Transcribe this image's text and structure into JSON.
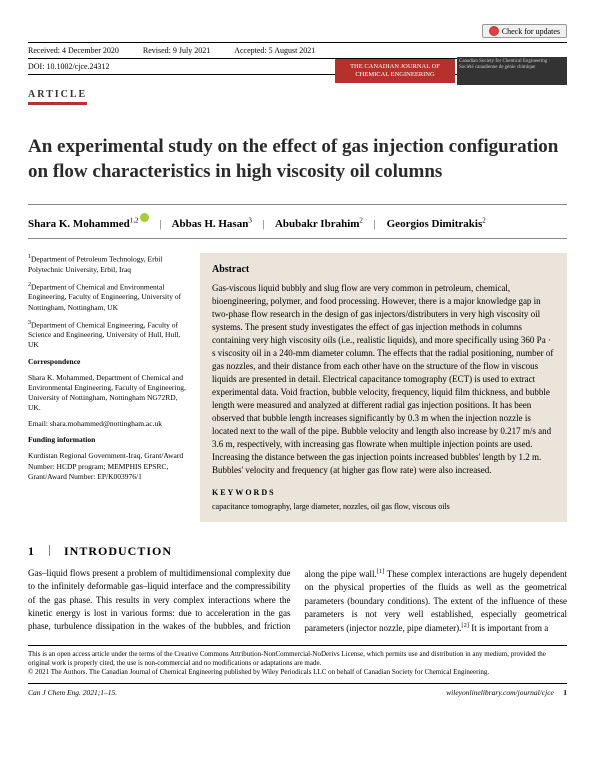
{
  "checkUpdates": "Check for updates",
  "meta": {
    "received": "Received: 4 December 2020",
    "revised": "Revised: 9 July 2021",
    "accepted": "Accepted: 5 August 2021",
    "doi": "DOI: 10.1002/cjce.24312"
  },
  "articleTag": "ARTICLE",
  "journalBanner": {
    "redLine1": "THE CANADIAN JOURNAL OF",
    "redLine2": "CHEMICAL ENGINEERING",
    "logoText": "Canadian Society for Chemical Engineering · Société canadienne de génie chimique"
  },
  "title": "An experimental study on the effect of gas injection configuration on flow characteristics in high viscosity oil columns",
  "authors": {
    "a1": {
      "name": "Shara K. Mohammed",
      "aff": "1,2"
    },
    "a2": {
      "name": "Abbas H. Hasan",
      "aff": "3"
    },
    "a3": {
      "name": "Abubakr Ibrahim",
      "aff": "2"
    },
    "a4": {
      "name": "Georgios Dimitrakis",
      "aff": "2"
    }
  },
  "affiliations": {
    "aff1": "Department of Petroleum Technology, Erbil Polytechnic University, Erbil, Iraq",
    "aff2": "Department of Chemical and Environmental Engineering, Faculty of Engineering, University of Nottingham, Nottingham, UK",
    "aff3": "Department of Chemical Engineering, Faculty of Science and Engineering, University of Hull, Hull, UK"
  },
  "correspondence": {
    "heading": "Correspondence",
    "text": "Shara K. Mohammed, Department of Chemical and Environmental Engineering, Faculty of Engineering, University of Nottingham, Nottingham NG72RD, UK.",
    "emailLabel": "Email: ",
    "email": "shara.mohammed@nottingham.ac.uk"
  },
  "funding": {
    "heading": "Funding information",
    "text": "Kurdistan Regional Government-Iraq, Grant/Award Number: HCDP program; MEMPHIS EPSRC, Grant/Award Number: EP/K003976/1"
  },
  "abstract": {
    "title": "Abstract",
    "body": "Gas-viscous liquid bubbly and slug flow are very common in petroleum, chemical, bioengineering, polymer, and food processing. However, there is a major knowledge gap in two-phase flow research in the design of gas injectors/distributers in very high viscosity oil systems. The present study investigates the effect of gas injection methods in columns containing very high viscosity oils (i.e., realistic liquids), and more specifically using 360 Pa · s viscosity oil in a 240-mm diameter column. The effects that the radial positioning, number of gas nozzles, and their distance from each other have on the structure of the flow in viscous liquids are presented in detail. Electrical capacitance tomography (ECT) is used to extract experimental data. Void fraction, bubble velocity, frequency, liquid film thickness, and bubble length were measured and analyzed at different radial gas injection positions. It has been observed that bubble length increases significantly by 0.3 m when the injection nozzle is located next to the wall of the pipe. Bubble velocity and length also increase by 0.217 m/s and 3.6 m, respectively, with increasing gas flowrate when multiple injection points are used. Increasing the distance between the gas injection points increased bubbles' length by 1.2 m. Bubbles' velocity and frequency (at higher gas flow rate) were also increased.",
    "kwTitle": "KEYWORDS",
    "keywords": "capacitance tomography, large diameter, nozzles, oil gas flow, viscous oils"
  },
  "section1": {
    "num": "1",
    "title": "INTRODUCTION",
    "para1": "Gas–liquid flows present a problem of multidimensional complexity due to the infinitely deformable gas–liquid interface and the compressibility of the gas phase. This results in very complex interactions where the kinetic energy is lost in various forms: due to acceleration in the gas phase,",
    "para2a": "turbulence dissipation in the wakes of the bubbles, and friction along the pipe wall.",
    "para2b": " These complex interactions are hugely dependent on the physical properties of the fluids as well as the geometrical parameters (boundary conditions). The extent of the influence of these parameters is not very well established, especially geometrical parameters (injector nozzle, pipe diameter).",
    "para2c": " It is important from a",
    "ref1": "[1]",
    "ref2": "[2]"
  },
  "license": {
    "line1": "This is an open access article under the terms of the Creative Commons Attribution-NonCommercial-NoDerivs License, which permits use and distribution in any medium, provided the original work is properly cited, the use is non-commercial and no modifications or adaptations are made.",
    "line2": "© 2021 The Authors. The Canadian Journal of Chemical Engineering published by Wiley Periodicals LLC on behalf of Canadian Society for Chemical Engineering."
  },
  "footer": {
    "left": "Can J Chem Eng. 2021;1–15.",
    "right": "wileyonlinelibrary.com/journal/cjce",
    "page": "1"
  },
  "colors": {
    "accentRed": "#b7312c",
    "abstractBg": "#eae4da",
    "orcid": "#a6ce39"
  }
}
